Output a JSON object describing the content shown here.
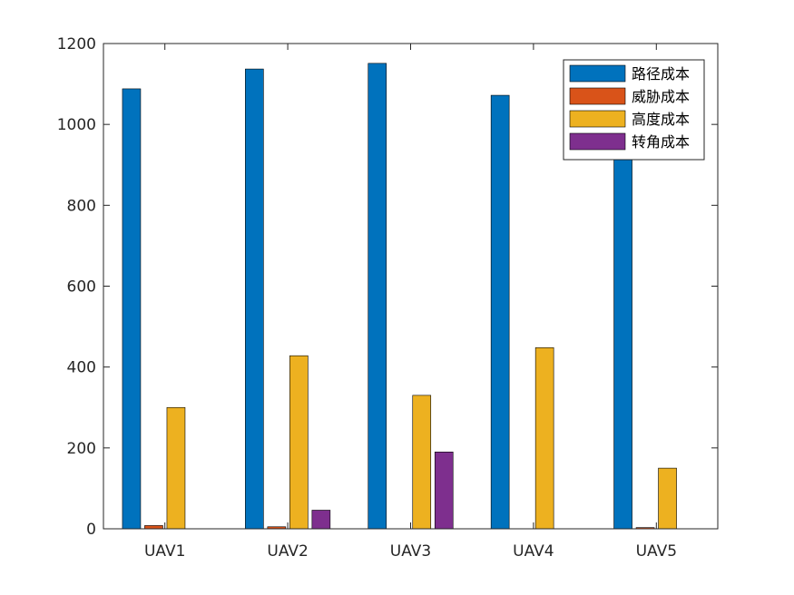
{
  "chart_data": {
    "type": "bar",
    "categories": [
      "UAV1",
      "UAV2",
      "UAV3",
      "UAV4",
      "UAV5"
    ],
    "series": [
      {
        "name": "路径成本",
        "color": "#0072BD",
        "values": [
          1088,
          1137,
          1151,
          1072,
          1042
        ]
      },
      {
        "name": "威胁成本",
        "color": "#D95319",
        "values": [
          8,
          5,
          0,
          0,
          3
        ]
      },
      {
        "name": "高度成本",
        "color": "#EDB120",
        "values": [
          300,
          428,
          330,
          448,
          150
        ]
      },
      {
        "name": "转角成本",
        "color": "#7E2F8E",
        "values": [
          0,
          46,
          190,
          0,
          0
        ]
      }
    ],
    "title": "",
    "xlabel": "",
    "ylabel": "",
    "ylim": [
      0,
      1200
    ],
    "yticks": [
      0,
      200,
      400,
      600,
      800,
      1000,
      1200
    ],
    "grid": false,
    "legend_position": "top-right"
  }
}
